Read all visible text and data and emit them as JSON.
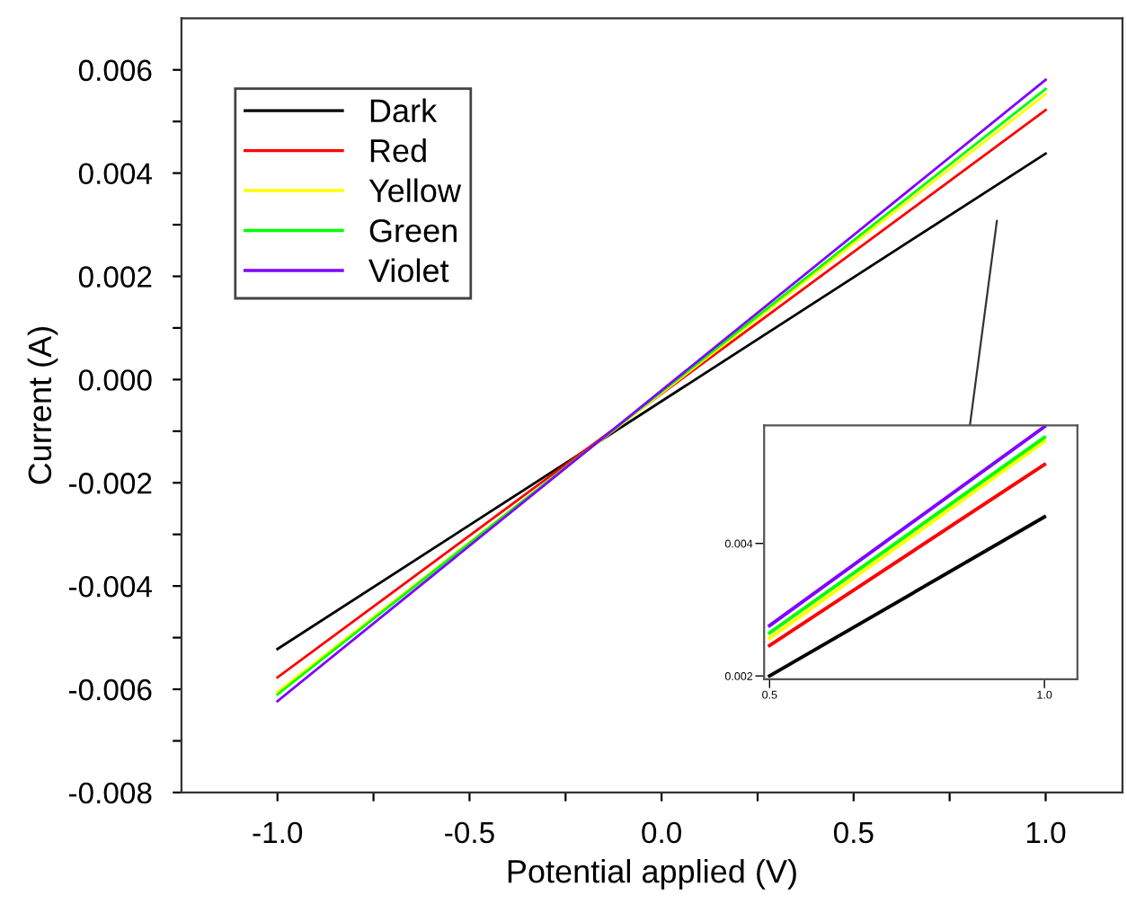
{
  "chart_data": [
    {
      "type": "line",
      "xlabel": "Potential applied (V)",
      "ylabel": "Current (A)",
      "x": [
        -1.0,
        1.0
      ],
      "series": [
        {
          "name": "Dark",
          "color": "#000000",
          "values": [
            -0.00522,
            0.00438
          ]
        },
        {
          "name": "Red",
          "color": "#ff0000",
          "values": [
            -0.00577,
            0.00522
          ]
        },
        {
          "name": "Yellow",
          "color": "#ffff00",
          "values": [
            -0.00605,
            0.00553
          ]
        },
        {
          "name": "Green",
          "color": "#00ff00",
          "values": [
            -0.0061,
            0.00563
          ]
        },
        {
          "name": "Violet",
          "color": "#8000ff",
          "values": [
            -0.00623,
            0.00581
          ]
        }
      ],
      "xlim": [
        -1.25,
        1.2
      ],
      "ylim": [
        -0.008,
        0.007
      ],
      "xticks": [
        {
          "value": -1.0,
          "label": "-1.0"
        },
        {
          "value": -0.75,
          "label": null
        },
        {
          "value": -0.5,
          "label": "-0.5"
        },
        {
          "value": -0.25,
          "label": null
        },
        {
          "value": 0.0,
          "label": "0.0"
        },
        {
          "value": 0.25,
          "label": null
        },
        {
          "value": 0.5,
          "label": "0.5"
        },
        {
          "value": 0.75,
          "label": null
        },
        {
          "value": 1.0,
          "label": "1.0"
        }
      ],
      "yticks": [
        {
          "value": -0.008,
          "label": "-0.008"
        },
        {
          "value": -0.007,
          "label": null
        },
        {
          "value": -0.006,
          "label": "-0.006"
        },
        {
          "value": -0.005,
          "label": null
        },
        {
          "value": -0.004,
          "label": "-0.004"
        },
        {
          "value": -0.003,
          "label": null
        },
        {
          "value": -0.002,
          "label": "-0.002"
        },
        {
          "value": -0.001,
          "label": null
        },
        {
          "value": 0.0,
          "label": "0.000"
        },
        {
          "value": 0.001,
          "label": null
        },
        {
          "value": 0.002,
          "label": "0.002"
        },
        {
          "value": 0.003,
          "label": null
        },
        {
          "value": 0.004,
          "label": "0.004"
        },
        {
          "value": 0.005,
          "label": null
        },
        {
          "value": 0.006,
          "label": "0.006"
        }
      ],
      "legend": "top left",
      "grid": false,
      "marker": "none",
      "line_style": "solid"
    },
    {
      "type": "line",
      "x": [
        0.5,
        1.0
      ],
      "series": [
        {
          "color": "#000000",
          "values": [
            0.002,
            0.0044
          ]
        },
        {
          "color": "#ff0000",
          "values": [
            0.00246,
            0.00519
          ]
        },
        {
          "color": "#ffff00",
          "values": [
            0.00257,
            0.00554
          ]
        },
        {
          "color": "#00ff00",
          "values": [
            0.00265,
            0.0056
          ]
        },
        {
          "color": "#8000ff",
          "values": [
            0.00276,
            0.00576
          ]
        }
      ],
      "xlim": [
        0.49,
        1.06
      ],
      "ylim": [
        0.00195,
        0.00578
      ],
      "xticks": [
        {
          "value": 0.5,
          "label": "0.5"
        },
        {
          "value": 1.0,
          "label": "1.0"
        }
      ],
      "yticks": [
        {
          "value": 0.002,
          "label": "0.002"
        },
        {
          "value": 0.004,
          "label": "0.004"
        }
      ],
      "legend": false,
      "grid": false,
      "marker": "none",
      "line_style": "solid"
    }
  ]
}
